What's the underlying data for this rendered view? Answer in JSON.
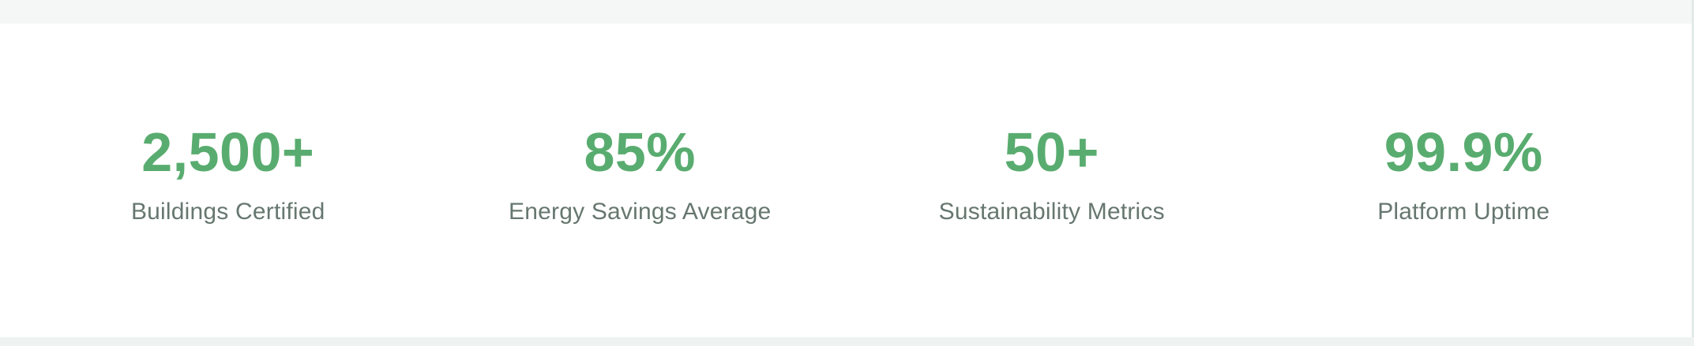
{
  "stats": [
    {
      "value": "2,500+",
      "label": "Buildings Certified"
    },
    {
      "value": "85%",
      "label": "Energy Savings Average"
    },
    {
      "value": "50+",
      "label": "Sustainability Metrics"
    },
    {
      "value": "99.9%",
      "label": "Platform Uptime"
    }
  ],
  "colors": {
    "accent_green": "#59ac6f",
    "label_gray": "#66776f",
    "page_background": "#f4f7f6",
    "section_background": "#ffffff"
  }
}
